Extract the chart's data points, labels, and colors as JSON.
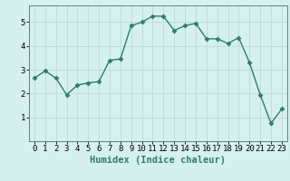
{
  "x": [
    0,
    1,
    2,
    3,
    4,
    5,
    6,
    7,
    8,
    9,
    10,
    11,
    12,
    13,
    14,
    15,
    16,
    17,
    18,
    19,
    20,
    21,
    22,
    23
  ],
  "y": [
    2.65,
    2.95,
    2.65,
    1.95,
    2.35,
    2.45,
    2.5,
    3.4,
    3.45,
    4.85,
    5.0,
    5.25,
    5.25,
    4.65,
    4.85,
    4.95,
    4.3,
    4.3,
    4.1,
    4.35,
    3.3,
    1.95,
    0.75,
    1.35
  ],
  "line_color": "#2e7d6e",
  "marker": "D",
  "marker_size": 2.5,
  "bg_color": "#d6f0f0",
  "grid_color": "#b8d4d4",
  "xlabel": "Humidex (Indice chaleur)",
  "xlim": [
    -0.5,
    23.5
  ],
  "ylim": [
    0,
    5.7
  ],
  "yticks": [
    1,
    2,
    3,
    4,
    5
  ],
  "xticks": [
    0,
    1,
    2,
    3,
    4,
    5,
    6,
    7,
    8,
    9,
    10,
    11,
    12,
    13,
    14,
    15,
    16,
    17,
    18,
    19,
    20,
    21,
    22,
    23
  ],
  "xlabel_fontsize": 7.5,
  "tick_fontsize": 6.5,
  "line_width": 1.0,
  "spine_color": "#4a8a80"
}
